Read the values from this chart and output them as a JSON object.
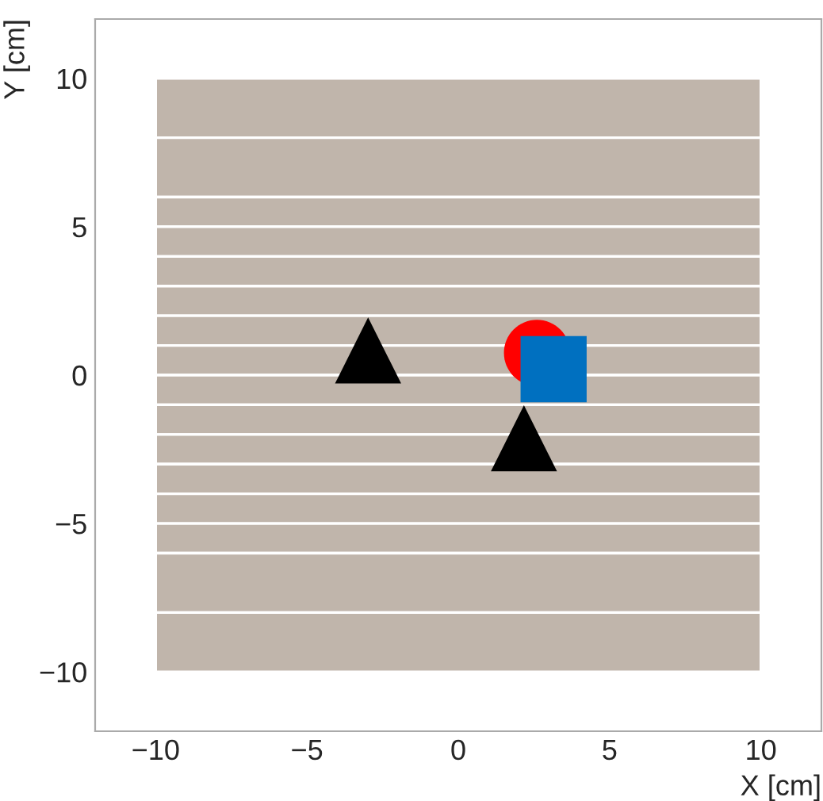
{
  "chart_data": {
    "type": "scatter",
    "xlabel": "X [cm]",
    "ylabel": "Y [cm]",
    "xlim": [
      -12,
      12
    ],
    "ylim": [
      -12,
      12
    ],
    "xticks": [
      -10,
      -5,
      0,
      5,
      10
    ],
    "yticks": [
      -10,
      -5,
      0,
      5,
      10
    ],
    "grid": false,
    "legend": false,
    "series": [
      {
        "color": "#ff0000",
        "marker": "circle",
        "x": [
          2.6
        ],
        "values": [
          0.75
        ]
      },
      {
        "color": "#0070c0",
        "marker": "square",
        "x": [
          3.15
        ],
        "values": [
          0.2
        ]
      },
      {
        "color": "#000000",
        "marker": "triangle",
        "x": [
          -2.98,
          2.17
        ],
        "values": [
          0.83,
          -2.13
        ]
      }
    ],
    "bands": [
      {
        "axis": "y",
        "from": 8,
        "to": 10,
        "color": "#c0b5ab"
      },
      {
        "axis": "y",
        "from": 6,
        "to": 8,
        "color": "#c0b5ab"
      },
      {
        "axis": "y",
        "from": 5,
        "to": 6,
        "color": "#c0b5ab"
      },
      {
        "axis": "y",
        "from": 4,
        "to": 5,
        "color": "#c0b5ab"
      },
      {
        "axis": "y",
        "from": 3,
        "to": 4,
        "color": "#c0b5ab"
      },
      {
        "axis": "y",
        "from": 2,
        "to": 3,
        "color": "#c0b5ab"
      },
      {
        "axis": "y",
        "from": 1,
        "to": 2,
        "color": "#c0b5ab"
      },
      {
        "axis": "y",
        "from": 0,
        "to": 1,
        "color": "#c0b5ab"
      },
      {
        "axis": "y",
        "from": -1,
        "to": 0,
        "color": "#c0b5ab"
      },
      {
        "axis": "y",
        "from": -2,
        "to": -1,
        "color": "#c0b5ab"
      },
      {
        "axis": "y",
        "from": -3,
        "to": -2,
        "color": "#c0b5ab"
      },
      {
        "axis": "y",
        "from": -4,
        "to": -3,
        "color": "#c0b5ab"
      },
      {
        "axis": "y",
        "from": -5,
        "to": -4,
        "color": "#c0b5ab"
      },
      {
        "axis": "y",
        "from": -6,
        "to": -5,
        "color": "#c0b5ab"
      },
      {
        "axis": "y",
        "from": -8,
        "to": -6,
        "color": "#c0b5ab"
      },
      {
        "axis": "y",
        "from": -10,
        "to": -8,
        "color": "#c0b5ab"
      }
    ]
  }
}
